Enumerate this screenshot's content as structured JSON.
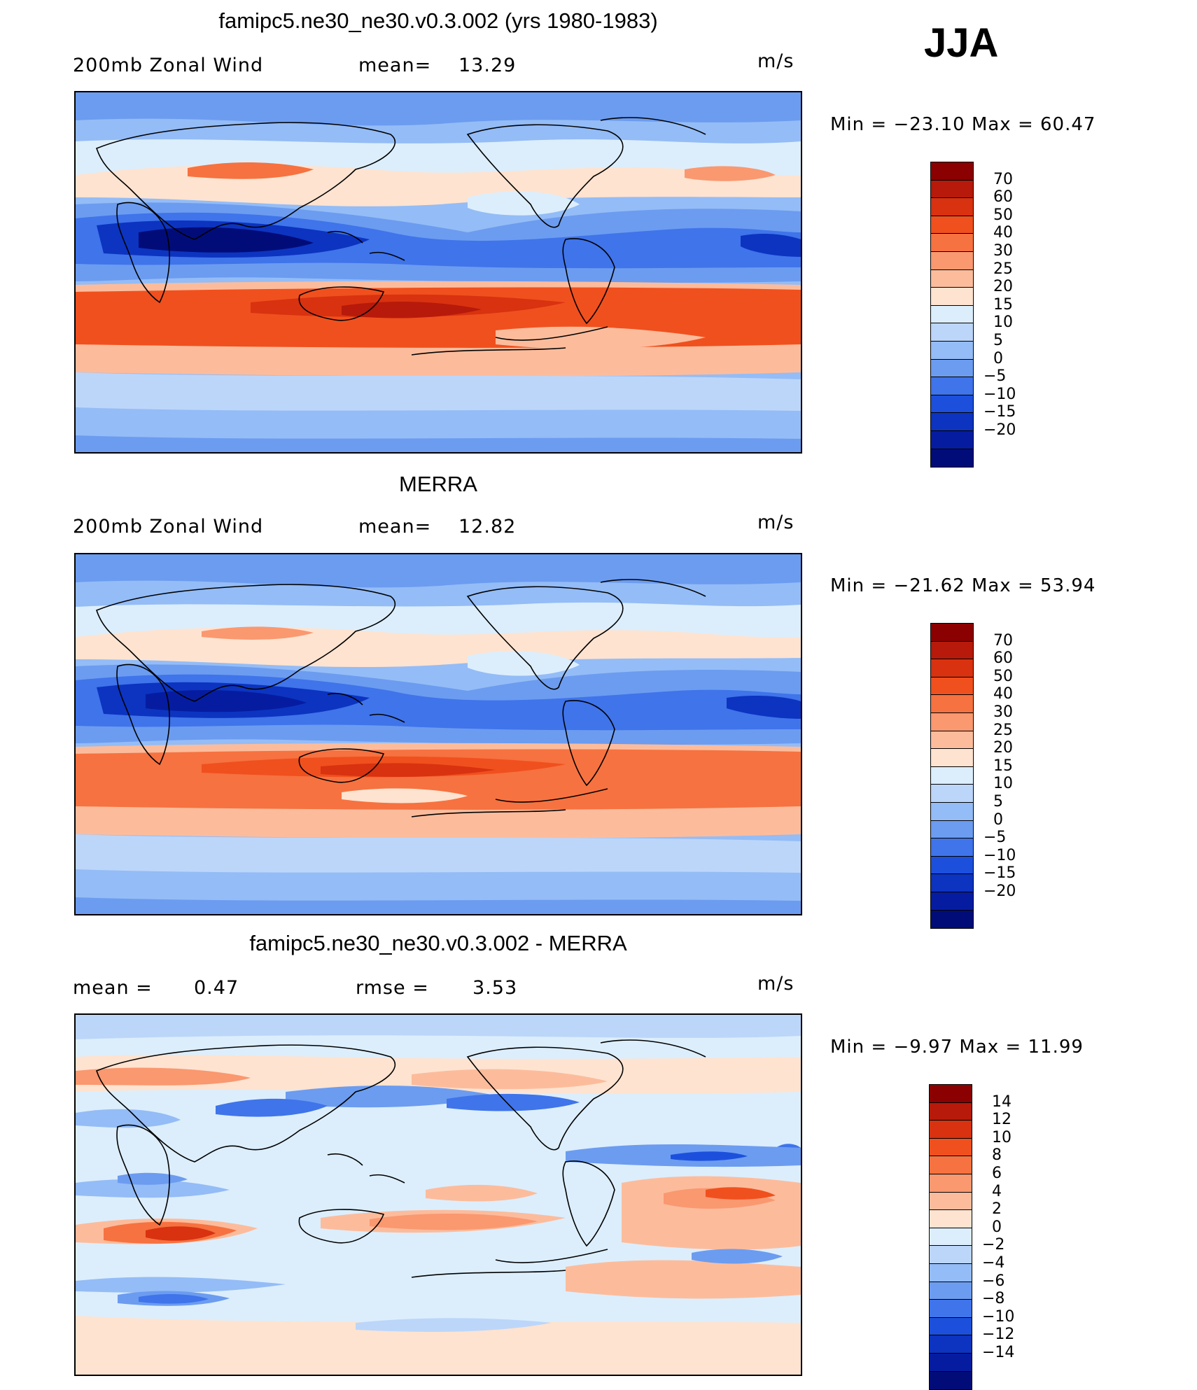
{
  "season": "JJA",
  "panels": [
    {
      "id": "model",
      "title": "famipc5.ne30_ne30.v0.3.002 (yrs 1980-1983)",
      "left_label": "200mb Zonal Wind",
      "mid_label": "mean=",
      "mid_value": "13.29",
      "units": "m/s",
      "min_label": "Min =",
      "min_value": "−23.10",
      "max_label": "Max =",
      "max_value": "60.47",
      "colorbar_labels": [
        "70",
        "60",
        "50",
        "40",
        "30",
        "25",
        "20",
        "15",
        "10",
        "5",
        "0",
        "−5",
        "−10",
        "−15",
        "−20"
      ],
      "colors": [
        "#8b0000",
        "#b71a0a",
        "#d83210",
        "#f0501e",
        "#f67240",
        "#fa9870",
        "#fcbc9c",
        "#fee3d0",
        "#dceefc",
        "#bcd6fa",
        "#94bcf6",
        "#6c9cf0",
        "#3f74ea",
        "#1c50dc",
        "#0c34c0",
        "#061ca0",
        "#020c78"
      ]
    },
    {
      "id": "obs",
      "title": "MERRA",
      "left_label": "200mb Zonal Wind",
      "mid_label": "mean=",
      "mid_value": "12.82",
      "units": "m/s",
      "min_label": "Min =",
      "min_value": "−21.62",
      "max_label": "Max =",
      "max_value": "53.94",
      "colorbar_labels": [
        "70",
        "60",
        "50",
        "40",
        "30",
        "25",
        "20",
        "15",
        "10",
        "5",
        "0",
        "−5",
        "−10",
        "−15",
        "−20"
      ],
      "colors": [
        "#8b0000",
        "#b71a0a",
        "#d83210",
        "#f0501e",
        "#f67240",
        "#fa9870",
        "#fcbc9c",
        "#fee3d0",
        "#dceefc",
        "#bcd6fa",
        "#94bcf6",
        "#6c9cf0",
        "#3f74ea",
        "#1c50dc",
        "#0c34c0",
        "#061ca0",
        "#020c78"
      ]
    },
    {
      "id": "diff",
      "title": "famipc5.ne30_ne30.v0.3.002 - MERRA",
      "left_label": "mean =",
      "left_value": "0.47",
      "mid_label": "rmse =",
      "mid_value": "3.53",
      "units": "m/s",
      "min_label": "Min =",
      "min_value": "−9.97",
      "max_label": "Max =",
      "max_value": "11.99",
      "colorbar_labels": [
        "14",
        "12",
        "10",
        "8",
        "6",
        "4",
        "2",
        "0",
        "−2",
        "−4",
        "−6",
        "−8",
        "−10",
        "−12",
        "−14"
      ],
      "colors": [
        "#8b0000",
        "#b71a0a",
        "#d83210",
        "#f0501e",
        "#f67240",
        "#fa9870",
        "#fcbc9c",
        "#fee3d0",
        "#dceefc",
        "#bcd6fa",
        "#94bcf6",
        "#6c9cf0",
        "#3f74ea",
        "#1c50dc",
        "#0c34c0",
        "#061ca0",
        "#020c78"
      ]
    }
  ]
}
